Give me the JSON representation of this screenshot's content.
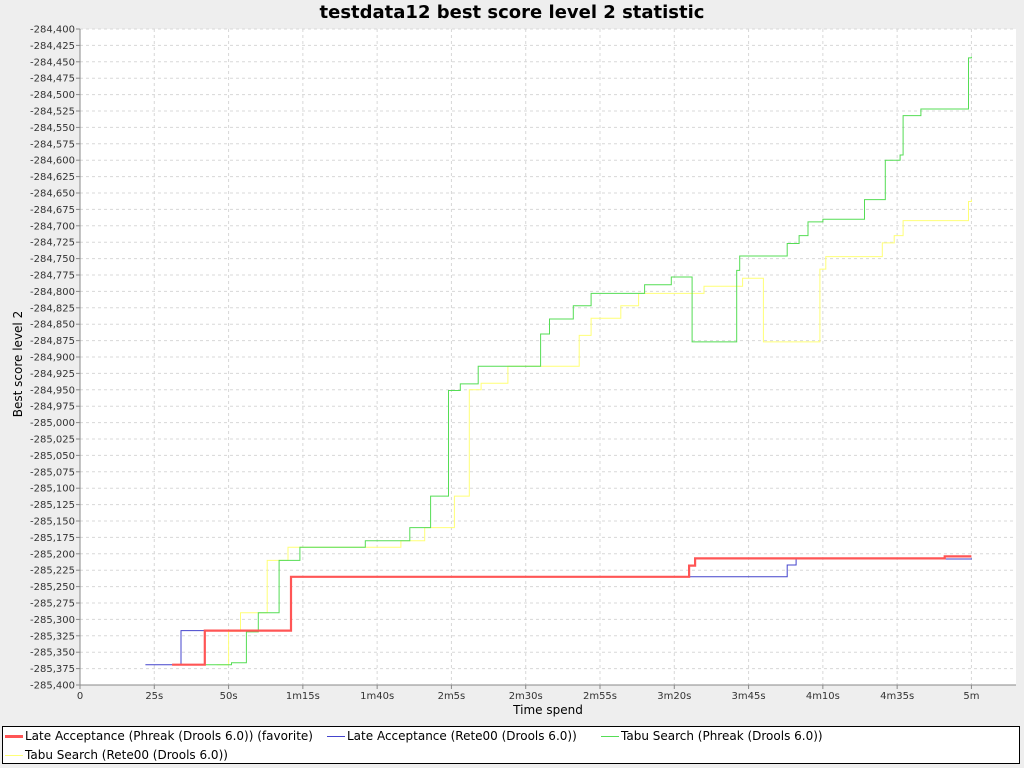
{
  "chart_data": {
    "type": "line",
    "title": "testdata12 best score level 2 statistic",
    "xlabel": "Time spend",
    "ylabel": "Best score level 2",
    "xlim_seconds": [
      0,
      315
    ],
    "ylim": [
      -285400,
      -284400
    ],
    "x_ticks": [
      {
        "label": "0",
        "value": 0
      },
      {
        "label": "25s",
        "value": 25
      },
      {
        "label": "50s",
        "value": 50
      },
      {
        "label": "1m15s",
        "value": 75
      },
      {
        "label": "1m40s",
        "value": 100
      },
      {
        "label": "2m5s",
        "value": 125
      },
      {
        "label": "2m30s",
        "value": 150
      },
      {
        "label": "2m55s",
        "value": 175
      },
      {
        "label": "3m20s",
        "value": 200
      },
      {
        "label": "3m45s",
        "value": 225
      },
      {
        "label": "4m10s",
        "value": 250
      },
      {
        "label": "4m35s",
        "value": 275
      },
      {
        "label": "5m",
        "value": 300
      }
    ],
    "y_ticks": [
      "-284,400",
      "-284,425",
      "-284,450",
      "-284,475",
      "-284,500",
      "-284,525",
      "-284,550",
      "-284,575",
      "-284,600",
      "-284,625",
      "-284,650",
      "-284,675",
      "-284,700",
      "-284,725",
      "-284,750",
      "-284,775",
      "-284,800",
      "-284,825",
      "-284,850",
      "-284,875",
      "-284,900",
      "-284,925",
      "-284,950",
      "-284,975",
      "-285,000",
      "-285,025",
      "-285,050",
      "-285,075",
      "-285,100",
      "-285,125",
      "-285,150",
      "-285,175",
      "-285,200",
      "-285,225",
      "-285,250",
      "-285,275",
      "-285,300",
      "-285,325",
      "-285,350",
      "-285,375",
      "-285,400"
    ],
    "y_tick_values": [
      -284400,
      -284425,
      -284450,
      -284475,
      -284500,
      -284525,
      -284550,
      -284575,
      -284600,
      -284625,
      -284650,
      -284675,
      -284700,
      -284725,
      -284750,
      -284775,
      -284800,
      -284825,
      -284850,
      -284875,
      -284900,
      -284925,
      -284950,
      -284975,
      -285000,
      -285025,
      -285050,
      -285075,
      -285100,
      -285125,
      -285150,
      -285175,
      -285200,
      -285225,
      -285250,
      -285275,
      -285300,
      -285325,
      -285350,
      -285375,
      -285400
    ],
    "grid": true,
    "legend_position": "bottom",
    "series": [
      {
        "name": "Late Acceptance (Phreak (Drools 6.0)) (favorite)",
        "color": "#ff5555",
        "width": 2.2,
        "step": true,
        "points": [
          [
            31,
            -285369
          ],
          [
            42,
            -285317
          ],
          [
            71,
            -285235
          ],
          [
            205,
            -285218
          ],
          [
            207,
            -285207
          ],
          [
            291,
            -285204
          ],
          [
            300,
            -285204
          ]
        ]
      },
      {
        "name": "Late Acceptance (Rete00 (Drools 6.0))",
        "color": "#4444cc",
        "width": 1,
        "step": true,
        "points": [
          [
            22,
            -285369
          ],
          [
            34,
            -285317
          ],
          [
            71,
            -285235
          ],
          [
            238,
            -285217
          ],
          [
            241,
            -285208
          ],
          [
            300,
            -285207
          ]
        ]
      },
      {
        "name": "Tabu Search (Phreak (Drools 6.0))",
        "color": "#55dd55",
        "width": 1,
        "step": true,
        "points": [
          [
            40,
            -285369
          ],
          [
            51,
            -285366
          ],
          [
            56,
            -285319
          ],
          [
            60,
            -285290
          ],
          [
            67,
            -285210
          ],
          [
            74,
            -285190
          ],
          [
            96,
            -285180
          ],
          [
            111,
            -285160
          ],
          [
            118,
            -285112
          ],
          [
            124,
            -284951
          ],
          [
            128,
            -284941
          ],
          [
            134,
            -284914
          ],
          [
            155,
            -284865
          ],
          [
            158,
            -284842
          ],
          [
            166,
            -284822
          ],
          [
            172,
            -284803
          ],
          [
            190,
            -284790
          ],
          [
            199,
            -284778
          ],
          [
            206,
            -284877
          ],
          [
            221,
            -284768
          ],
          [
            222,
            -284746
          ],
          [
            238,
            -284727
          ],
          [
            242,
            -284715
          ],
          [
            245,
            -284694
          ],
          [
            250,
            -284690
          ],
          [
            264,
            -284660
          ],
          [
            271,
            -284600
          ],
          [
            276,
            -284592
          ],
          [
            277,
            -284532
          ],
          [
            283,
            -284522
          ],
          [
            299,
            -284444
          ],
          [
            300,
            -284442
          ]
        ]
      },
      {
        "name": "Tabu Search (Rete00 (Drools 6.0))",
        "color": "#ffff77",
        "width": 1,
        "step": true,
        "points": [
          [
            46,
            -285369
          ],
          [
            50,
            -285318
          ],
          [
            54,
            -285290
          ],
          [
            63,
            -285210
          ],
          [
            70,
            -285190
          ],
          [
            108,
            -285180
          ],
          [
            116,
            -285160
          ],
          [
            126,
            -285112
          ],
          [
            131,
            -284950
          ],
          [
            135,
            -284940
          ],
          [
            144,
            -284914
          ],
          [
            168,
            -284867
          ],
          [
            172,
            -284841
          ],
          [
            182,
            -284822
          ],
          [
            188,
            -284803
          ],
          [
            210,
            -284792
          ],
          [
            223,
            -284780
          ],
          [
            230,
            -284877
          ],
          [
            249,
            -284766
          ],
          [
            251,
            -284747
          ],
          [
            270,
            -284726
          ],
          [
            274,
            -284715
          ],
          [
            277,
            -284692
          ],
          [
            299,
            -284663
          ],
          [
            300,
            -284660
          ]
        ]
      }
    ]
  }
}
